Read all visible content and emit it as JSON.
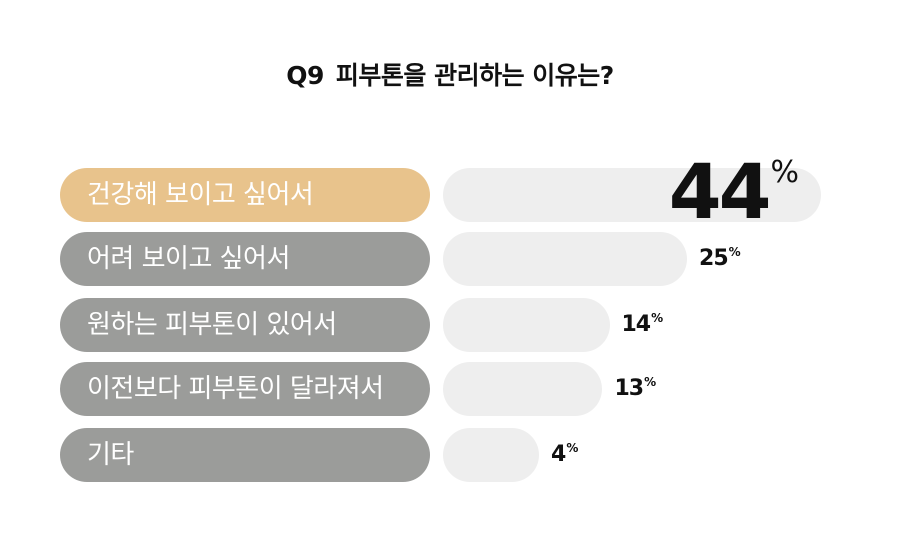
{
  "title": {
    "question_number": "Q9",
    "question_text": "피부톤을 관리하는 이유는?"
  },
  "colors": {
    "highlight_label": "#e8c38c",
    "label": "#9b9c9a",
    "track": "#eeeeee",
    "text_dark": "#111111"
  },
  "chart_data": {
    "type": "bar",
    "orientation": "horizontal",
    "title": "Q9  피부톤을 관리하는 이유는?",
    "unit": "%",
    "categories": [
      "건강해 보이고 싶어서",
      "어려 보이고 싶어서",
      "원하는 피부톤이 있어서",
      "이전보다 피부톤이 달라져서",
      "기타"
    ],
    "values": [
      44,
      25,
      14,
      13,
      4
    ],
    "value_labels": [
      "44",
      "25",
      "14",
      "13",
      "4"
    ],
    "highlight_index": 0,
    "xlim": [
      0,
      44
    ]
  }
}
